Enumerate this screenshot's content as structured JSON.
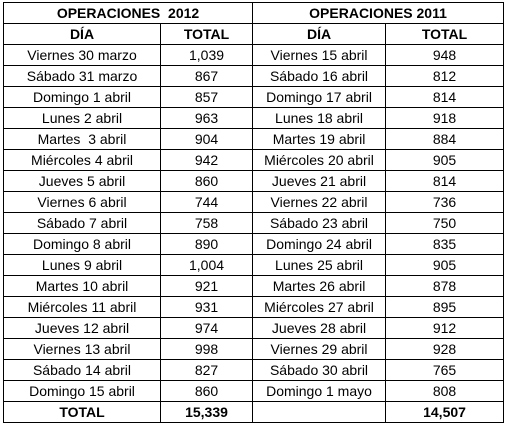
{
  "table": {
    "titles": [
      "OPERACIONES  2012",
      "OPERACIONES 2011"
    ],
    "columns": [
      "DÍA",
      "TOTAL",
      "DÍA",
      "TOTAL"
    ],
    "rows": [
      [
        "Viernes 30 marzo",
        "1,039",
        "Viernes 15 abril",
        "948"
      ],
      [
        "Sábado 31 marzo",
        "867",
        "Sábado 16 abril",
        "812"
      ],
      [
        "Domingo 1 abril",
        "857",
        "Domingo 17 abril",
        "814"
      ],
      [
        "Lunes 2 abril",
        "963",
        "Lunes 18 abril",
        "918"
      ],
      [
        "Martes  3 abril",
        "904",
        "Martes 19 abril",
        "884"
      ],
      [
        "Miércoles 4 abril",
        "942",
        "Miércoles 20 abril",
        "905"
      ],
      [
        "Jueves 5 abril",
        "860",
        "Jueves 21 abril",
        "814"
      ],
      [
        "Viernes 6 abril",
        "744",
        "Viernes 22 abril",
        "736"
      ],
      [
        "Sábado 7 abril",
        "758",
        "Sábado 23 abril",
        "750"
      ],
      [
        "Domingo 8 abril",
        "890",
        "Domingo 24 abril",
        "835"
      ],
      [
        "Lunes 9 abril",
        "1,004",
        "Lunes 25 abril",
        "905"
      ],
      [
        "Martes 10 abril",
        "921",
        "Martes 26 abril",
        "878"
      ],
      [
        "Miércoles 11 abril",
        "931",
        "Miércoles 27 abril",
        "895"
      ],
      [
        "Jueves 12 abril",
        "974",
        "Jueves 28 abril",
        "912"
      ],
      [
        "Viernes 13 abril",
        "998",
        "Viernes 29 abril",
        "928"
      ],
      [
        "Sábado 14 abril",
        "827",
        "Sábado 30 abril",
        "765"
      ],
      [
        "Domingo 15 abril",
        "860",
        "Domingo 1 mayo",
        "808"
      ]
    ],
    "footer": {
      "label": "TOTAL",
      "totals": [
        "15,339",
        "14,507"
      ]
    }
  }
}
